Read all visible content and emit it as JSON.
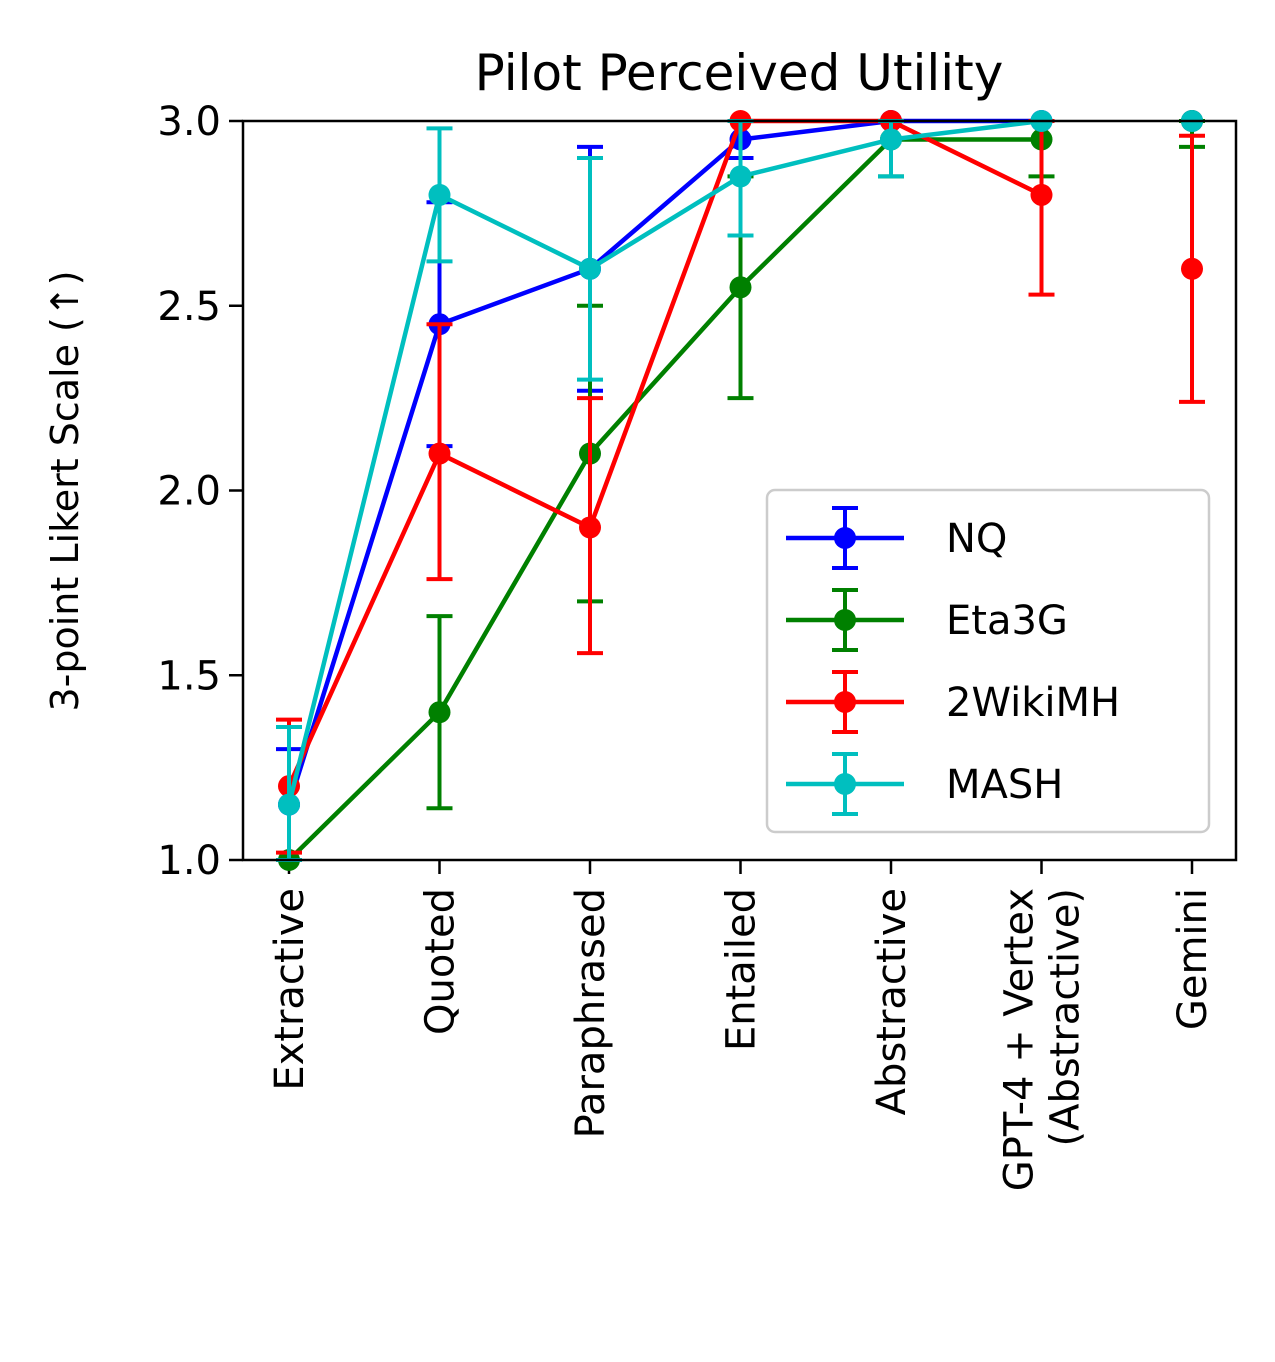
{
  "chart_data": {
    "type": "line",
    "title": "Pilot Perceived Utility",
    "ylabel": "3-point Likert Scale (↑)",
    "xlabel": "",
    "categories": [
      [
        "Extractive"
      ],
      [
        "Quoted"
      ],
      [
        "Paraphrased"
      ],
      [
        "Entailed"
      ],
      [
        "Abstractive"
      ],
      [
        "GPT-4 + Vertex",
        "(Abstractive)"
      ],
      [
        "Gemini"
      ]
    ],
    "ylim": [
      1.0,
      3.0
    ],
    "yticks": [
      "1.0",
      "1.5",
      "2.0",
      "2.5",
      "3.0"
    ],
    "grid": false,
    "legend_position": "lower-right",
    "series": [
      {
        "name": "NQ",
        "color": "#0000ff",
        "values": [
          1.15,
          2.45,
          2.6,
          2.95,
          3.0,
          3.0,
          3.0
        ],
        "err_low": [
          1.0,
          2.12,
          2.27,
          2.9,
          3.0,
          3.0,
          3.0
        ],
        "err_high": [
          1.3,
          2.78,
          2.93,
          3.0,
          3.0,
          3.0,
          3.0
        ]
      },
      {
        "name": "Eta3G",
        "color": "#008000",
        "values": [
          1.0,
          1.4,
          2.1,
          2.55,
          2.95,
          2.95,
          3.0
        ],
        "err_low": [
          1.0,
          1.14,
          1.7,
          2.25,
          2.85,
          2.85,
          2.93
        ],
        "err_high": [
          1.0,
          1.66,
          2.5,
          2.85,
          3.0,
          3.0,
          3.0
        ]
      },
      {
        "name": "2WikiMH",
        "color": "#ff0000",
        "values": [
          1.2,
          2.1,
          1.9,
          3.0,
          3.0,
          2.8,
          2.6
        ],
        "err_low": [
          1.02,
          1.76,
          1.56,
          3.0,
          3.0,
          2.53,
          2.24
        ],
        "err_high": [
          1.38,
          2.45,
          2.25,
          3.0,
          3.0,
          3.0,
          2.96
        ]
      },
      {
        "name": "MASH",
        "color": "#00bfbf",
        "values": [
          1.15,
          2.8,
          2.6,
          2.85,
          2.95,
          3.0,
          3.0
        ],
        "err_low": [
          1.0,
          2.62,
          2.3,
          2.69,
          2.85,
          3.0,
          3.0
        ],
        "err_high": [
          1.36,
          2.98,
          2.9,
          3.0,
          3.0,
          3.0,
          3.0
        ]
      }
    ],
    "connected_upto_index": 5
  }
}
